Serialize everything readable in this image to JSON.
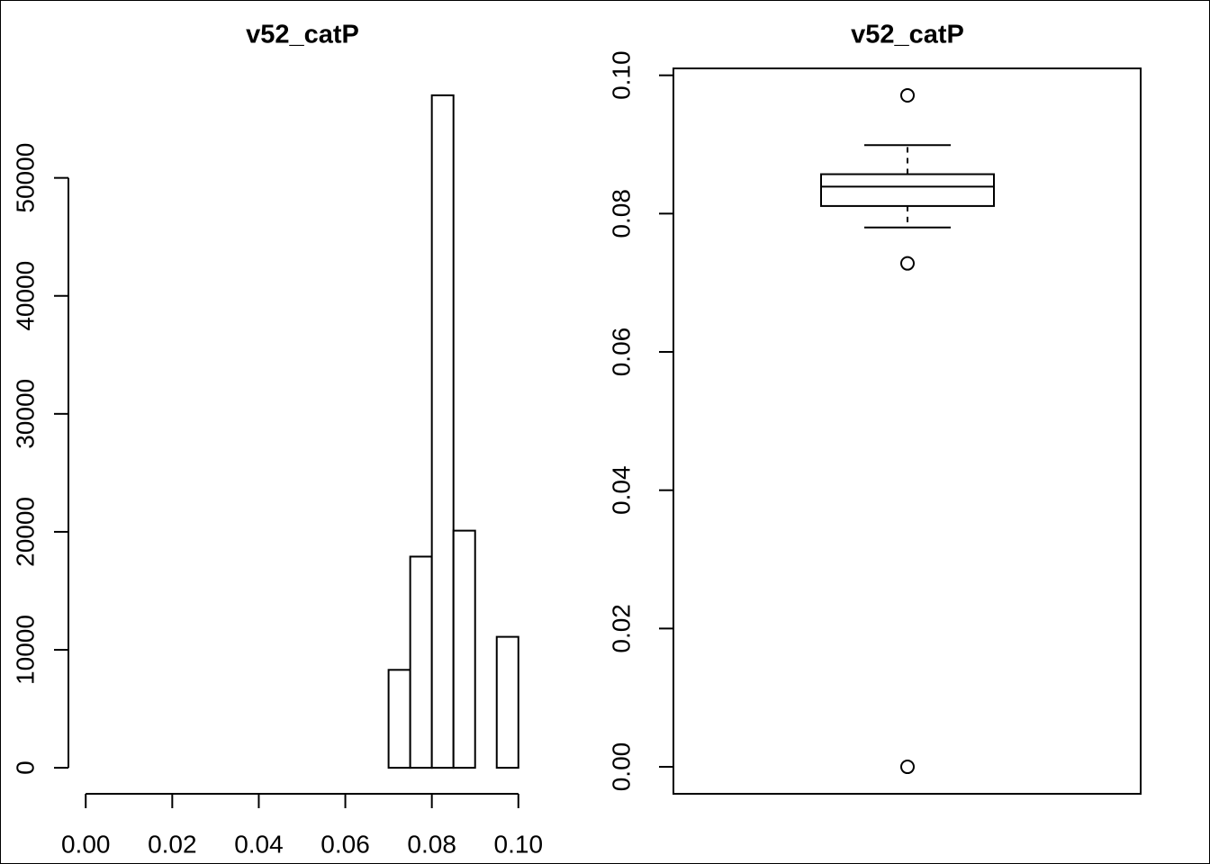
{
  "chart_data": [
    {
      "type": "histogram",
      "title": "v52_catP",
      "bins": [
        0,
        0.005,
        0.01,
        0.015,
        0.02,
        0.025,
        0.03,
        0.035,
        0.04,
        0.045,
        0.05,
        0.055,
        0.06,
        0.065,
        0.07,
        0.075,
        0.08,
        0.085,
        0.09,
        0.095,
        0.1
      ],
      "values": [
        0,
        0,
        0,
        0,
        0,
        0,
        0,
        0,
        0,
        0,
        0,
        0,
        0,
        0,
        8300,
        17900,
        57000,
        20100,
        0,
        11100
      ],
      "color": "#ffffff",
      "xlim": [
        -0.004,
        0.104
      ],
      "ylim": [
        -2280,
        59280
      ],
      "xticks": [
        {
          "value": 0,
          "label": "0.00"
        },
        {
          "value": 0.02,
          "label": "0.02"
        },
        {
          "value": 0.04,
          "label": "0.04"
        },
        {
          "value": 0.06,
          "label": "0.06"
        },
        {
          "value": 0.08,
          "label": "0.08"
        },
        {
          "value": 0.1,
          "label": "0.10"
        }
      ],
      "yticks": [
        0,
        10000,
        20000,
        30000,
        40000,
        50000
      ]
    },
    {
      "type": "box",
      "title": "v52_catP",
      "min": 0.078,
      "q1": 0.0811,
      "median": 0.0839,
      "q3": 0.0857,
      "max": 0.0899,
      "outliers": [
        0.0971,
        0.0728,
        0
      ],
      "ylim": [
        -0.0039,
        0.101
      ],
      "yticks": [
        {
          "value": 0,
          "label": "0.00"
        },
        {
          "value": 0.02,
          "label": "0.02"
        },
        {
          "value": 0.04,
          "label": "0.04"
        },
        {
          "value": 0.06,
          "label": "0.06"
        },
        {
          "value": 0.08,
          "label": "0.08"
        },
        {
          "value": 0.1,
          "label": "0.10"
        }
      ]
    }
  ]
}
